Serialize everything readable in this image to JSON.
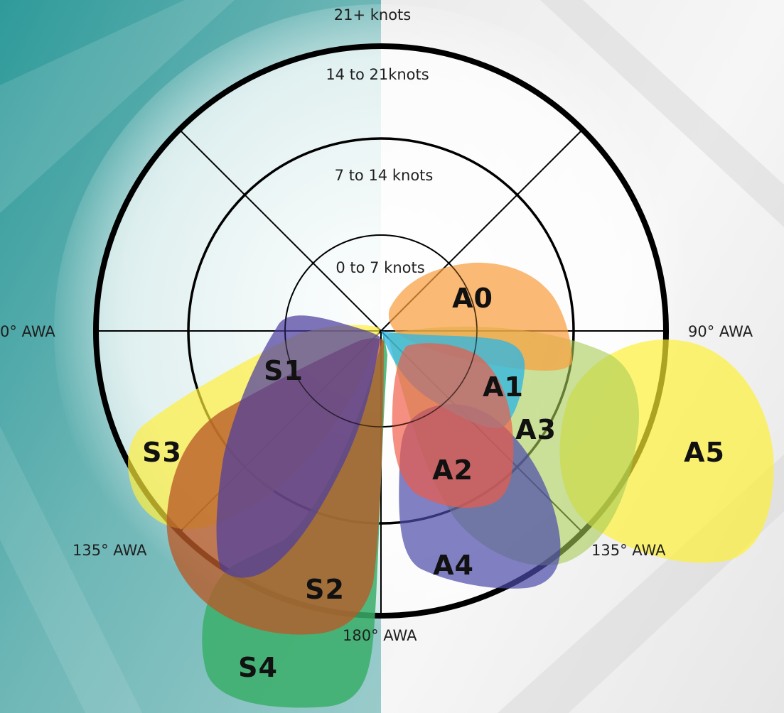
{
  "rings": [
    {
      "label": "21+ knots"
    },
    {
      "label": "14 to 21knots"
    },
    {
      "label": "7 to 14 knots"
    },
    {
      "label": "0 to 7 knots"
    }
  ],
  "angles": {
    "left_0": "0° AWA",
    "right_90": "90° AWA",
    "left_135": "135° AWA",
    "right_135": "135° AWA",
    "bottom_180": "180° AWA"
  },
  "sails": [
    {
      "id": "A0",
      "label": "A0",
      "color": "#F8A040"
    },
    {
      "id": "A1",
      "label": "A1",
      "color": "#2BB6E6"
    },
    {
      "id": "A2",
      "label": "A2",
      "color": "#EF5A45"
    },
    {
      "id": "A3",
      "label": "A3",
      "color": "#A8CC55"
    },
    {
      "id": "A4",
      "label": "A4",
      "color": "#4A4AAA"
    },
    {
      "id": "A5",
      "label": "A5",
      "color": "#FFF033"
    },
    {
      "id": "S1",
      "label": "S1",
      "color": "#4E3FA0"
    },
    {
      "id": "S2",
      "label": "S2",
      "color": "#B85A28"
    },
    {
      "id": "S3",
      "label": "S3",
      "color": "#FFEF3A"
    },
    {
      "id": "S4",
      "label": "S4",
      "color": "#3AAE68"
    }
  ]
}
